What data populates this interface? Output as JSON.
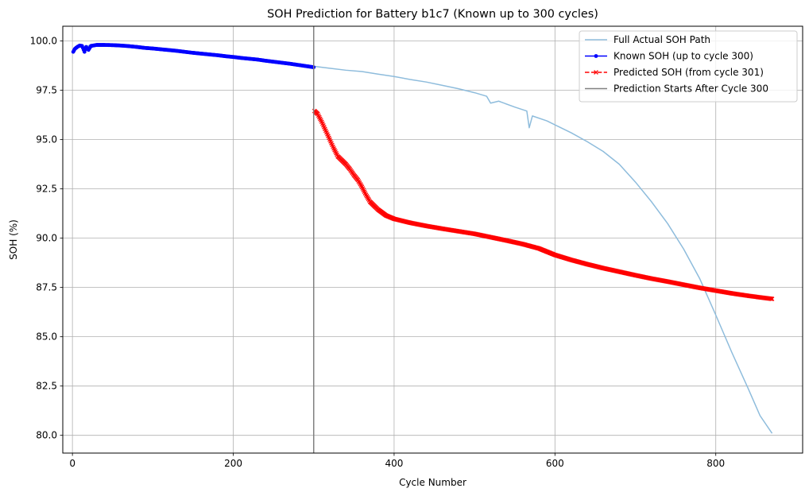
{
  "chart_data": {
    "type": "line",
    "title": "SOH Prediction for Battery b1c7 (Known up to 300 cycles)",
    "xlabel": "Cycle Number",
    "ylabel": "SOH (%)",
    "xlim": [
      -12,
      908
    ],
    "ylim": [
      79.1,
      100.75
    ],
    "xticks": [
      0,
      200,
      400,
      600,
      800
    ],
    "yticks": [
      80.0,
      82.5,
      85.0,
      87.5,
      90.0,
      92.5,
      95.0,
      97.5,
      100.0
    ],
    "xtick_labels": [
      "0",
      "200",
      "400",
      "600",
      "800"
    ],
    "ytick_labels": [
      "80.0",
      "82.5",
      "85.0",
      "87.5",
      "90.0",
      "92.5",
      "95.0",
      "97.5",
      "100.0"
    ],
    "grid": true,
    "legend_position": "top-right",
    "series": [
      {
        "name": "Full Actual SOH Path",
        "color": "#8ebcdc",
        "style": "solid",
        "points": [
          [
            2,
            99.5
          ],
          [
            5,
            99.7
          ],
          [
            10,
            99.78
          ],
          [
            15,
            99.55
          ],
          [
            18,
            99.75
          ],
          [
            25,
            99.8
          ],
          [
            40,
            99.8
          ],
          [
            60,
            99.76
          ],
          [
            80,
            99.7
          ],
          [
            100,
            99.62
          ],
          [
            120,
            99.55
          ],
          [
            150,
            99.42
          ],
          [
            180,
            99.3
          ],
          [
            200,
            99.2
          ],
          [
            230,
            99.1
          ],
          [
            250,
            98.98
          ],
          [
            270,
            98.87
          ],
          [
            300,
            98.72
          ],
          [
            320,
            98.62
          ],
          [
            340,
            98.52
          ],
          [
            360,
            98.45
          ],
          [
            380,
            98.32
          ],
          [
            400,
            98.2
          ],
          [
            420,
            98.05
          ],
          [
            440,
            97.92
          ],
          [
            460,
            97.75
          ],
          [
            480,
            97.58
          ],
          [
            500,
            97.38
          ],
          [
            515,
            97.2
          ],
          [
            520,
            96.85
          ],
          [
            530,
            96.95
          ],
          [
            550,
            96.65
          ],
          [
            565,
            96.45
          ],
          [
            568,
            95.6
          ],
          [
            572,
            96.2
          ],
          [
            590,
            95.95
          ],
          [
            600,
            95.75
          ],
          [
            620,
            95.35
          ],
          [
            640,
            94.9
          ],
          [
            660,
            94.4
          ],
          [
            680,
            93.75
          ],
          [
            700,
            92.85
          ],
          [
            720,
            91.85
          ],
          [
            740,
            90.75
          ],
          [
            760,
            89.45
          ],
          [
            780,
            87.95
          ],
          [
            800,
            86.1
          ],
          [
            820,
            84.2
          ],
          [
            840,
            82.4
          ],
          [
            855,
            81.0
          ],
          [
            870,
            80.1
          ]
        ]
      },
      {
        "name": "Known SOH (up to cycle 300)",
        "color": "#0000ff",
        "style": "solid-dot",
        "points": [
          [
            1,
            99.45
          ],
          [
            3,
            99.6
          ],
          [
            6,
            99.7
          ],
          [
            9,
            99.77
          ],
          [
            12,
            99.75
          ],
          [
            15,
            99.45
          ],
          [
            17,
            99.7
          ],
          [
            20,
            99.55
          ],
          [
            23,
            99.75
          ],
          [
            30,
            99.8
          ],
          [
            40,
            99.8
          ],
          [
            50,
            99.79
          ],
          [
            60,
            99.77
          ],
          [
            70,
            99.74
          ],
          [
            80,
            99.7
          ],
          [
            90,
            99.65
          ],
          [
            100,
            99.62
          ],
          [
            110,
            99.58
          ],
          [
            120,
            99.54
          ],
          [
            130,
            99.5
          ],
          [
            140,
            99.45
          ],
          [
            150,
            99.4
          ],
          [
            160,
            99.36
          ],
          [
            170,
            99.32
          ],
          [
            180,
            99.28
          ],
          [
            190,
            99.23
          ],
          [
            200,
            99.19
          ],
          [
            210,
            99.14
          ],
          [
            220,
            99.1
          ],
          [
            230,
            99.06
          ],
          [
            240,
            99.0
          ],
          [
            250,
            98.95
          ],
          [
            260,
            98.9
          ],
          [
            270,
            98.85
          ],
          [
            280,
            98.79
          ],
          [
            290,
            98.73
          ],
          [
            300,
            98.67
          ]
        ]
      },
      {
        "name": "Predicted SOH (from cycle 301)",
        "color": "#ff0000",
        "style": "dashed-x",
        "points": [
          [
            301,
            96.45
          ],
          [
            305,
            96.3
          ],
          [
            310,
            95.9
          ],
          [
            315,
            95.45
          ],
          [
            320,
            95.0
          ],
          [
            325,
            94.55
          ],
          [
            330,
            94.15
          ],
          [
            335,
            93.95
          ],
          [
            340,
            93.75
          ],
          [
            345,
            93.5
          ],
          [
            350,
            93.2
          ],
          [
            355,
            92.95
          ],
          [
            360,
            92.6
          ],
          [
            365,
            92.2
          ],
          [
            370,
            91.85
          ],
          [
            375,
            91.65
          ],
          [
            380,
            91.45
          ],
          [
            385,
            91.3
          ],
          [
            390,
            91.15
          ],
          [
            400,
            90.98
          ],
          [
            420,
            90.78
          ],
          [
            440,
            90.62
          ],
          [
            460,
            90.48
          ],
          [
            480,
            90.35
          ],
          [
            500,
            90.22
          ],
          [
            520,
            90.05
          ],
          [
            540,
            89.88
          ],
          [
            560,
            89.7
          ],
          [
            580,
            89.48
          ],
          [
            600,
            89.15
          ],
          [
            620,
            88.9
          ],
          [
            640,
            88.68
          ],
          [
            660,
            88.48
          ],
          [
            680,
            88.3
          ],
          [
            700,
            88.12
          ],
          [
            720,
            87.95
          ],
          [
            740,
            87.8
          ],
          [
            760,
            87.64
          ],
          [
            780,
            87.48
          ],
          [
            800,
            87.34
          ],
          [
            820,
            87.2
          ],
          [
            840,
            87.08
          ],
          [
            860,
            86.97
          ],
          [
            870,
            86.92
          ]
        ]
      },
      {
        "name": "Prediction Starts After Cycle 300",
        "color": "#808080",
        "style": "vline",
        "x": 300
      }
    ]
  }
}
